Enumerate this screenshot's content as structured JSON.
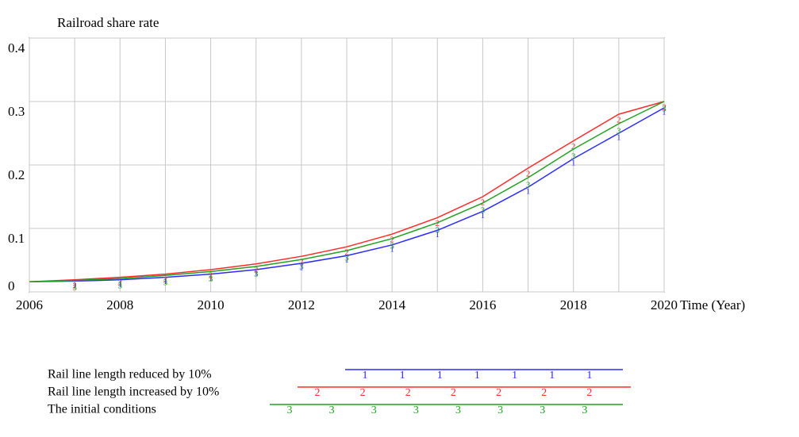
{
  "chart_data": {
    "type": "line",
    "title": "Railroad share rate",
    "xlabel": "Time (Year)",
    "x": [
      2006,
      2007,
      2008,
      2009,
      2010,
      2011,
      2012,
      2013,
      2014,
      2015,
      2016,
      2017,
      2018,
      2019,
      2020
    ],
    "series": [
      {
        "name": "Rail line length reduced by 10%",
        "color": "#2b2bff",
        "marker": "1",
        "values": [
          0.016,
          0.017,
          0.019,
          0.023,
          0.028,
          0.035,
          0.045,
          0.057,
          0.074,
          0.097,
          0.127,
          0.165,
          0.21,
          0.25,
          0.29
        ]
      },
      {
        "name": "Rail line length increased by 10%",
        "color": "#ff2b2b",
        "marker": "2",
        "values": [
          0.016,
          0.019,
          0.023,
          0.028,
          0.035,
          0.044,
          0.056,
          0.071,
          0.091,
          0.117,
          0.15,
          0.195,
          0.238,
          0.28,
          0.3
        ]
      },
      {
        "name": "The initial conditions",
        "color": "#22a022",
        "marker": "3",
        "values": [
          0.016,
          0.018,
          0.021,
          0.026,
          0.032,
          0.04,
          0.051,
          0.065,
          0.084,
          0.109,
          0.14,
          0.18,
          0.225,
          0.265,
          0.3
        ]
      }
    ],
    "xlim": [
      2006,
      2020
    ],
    "xticks": [
      2006,
      2008,
      2010,
      2012,
      2014,
      2016,
      2018,
      2020
    ],
    "xminor": [
      2007,
      2009,
      2011,
      2013,
      2015,
      2017,
      2019
    ],
    "ylim": [
      0,
      0.4
    ],
    "yticks": [
      0,
      0.1,
      0.2,
      0.3,
      0.4
    ],
    "grid": true
  }
}
